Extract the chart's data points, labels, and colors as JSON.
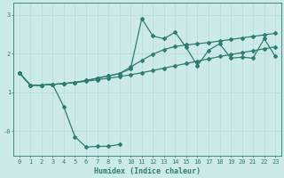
{
  "xlabel": "Humidex (Indice chaleur)",
  "ylabel": "",
  "bg_color": "#cceae8",
  "line_color": "#2e7d72",
  "grid_color": "#b8d8d6",
  "xlim": [
    -0.5,
    23.5
  ],
  "ylim": [
    -0.65,
    3.3
  ],
  "xticks": [
    0,
    1,
    2,
    3,
    4,
    5,
    6,
    7,
    8,
    9,
    10,
    11,
    12,
    13,
    14,
    15,
    16,
    17,
    18,
    19,
    20,
    21,
    22,
    23
  ],
  "yticks": [
    0.0,
    1.0,
    2.0,
    3.0
  ],
  "ytick_labels": [
    "-0",
    "1",
    "2",
    "3"
  ],
  "line1_x": [
    0,
    1,
    2,
    3,
    4,
    5,
    6,
    7,
    8,
    9,
    10,
    11,
    12,
    13,
    14,
    15,
    16,
    17,
    18,
    19,
    20,
    21,
    22,
    23
  ],
  "line1_y": [
    1.5,
    1.18,
    1.18,
    1.2,
    1.22,
    1.25,
    1.28,
    1.32,
    1.36,
    1.4,
    1.45,
    1.5,
    1.56,
    1.62,
    1.68,
    1.74,
    1.8,
    1.86,
    1.92,
    1.97,
    2.02,
    2.07,
    2.12,
    2.17
  ],
  "line2_x": [
    0,
    1,
    2,
    3,
    4,
    5,
    6,
    7,
    8,
    9,
    10,
    11,
    12,
    13,
    14,
    15,
    16,
    17,
    18,
    19,
    20,
    21,
    22,
    23
  ],
  "line2_y": [
    1.5,
    1.18,
    1.18,
    1.2,
    1.22,
    1.25,
    1.3,
    1.36,
    1.42,
    1.48,
    1.65,
    1.82,
    1.98,
    2.1,
    2.18,
    2.22,
    2.25,
    2.28,
    2.32,
    2.36,
    2.4,
    2.44,
    2.48,
    2.52
  ],
  "line3_x": [
    0,
    1,
    2,
    3,
    4,
    5,
    6,
    7,
    8,
    9,
    10,
    11,
    12,
    13,
    14,
    15,
    16,
    17,
    18,
    19,
    20,
    21,
    22,
    23
  ],
  "line3_y": [
    1.5,
    1.18,
    1.18,
    1.2,
    1.22,
    1.25,
    1.3,
    1.36,
    1.42,
    1.48,
    1.6,
    2.9,
    2.45,
    2.38,
    2.55,
    2.15,
    1.68,
    2.08,
    2.25,
    1.88,
    1.9,
    1.88,
    2.38,
    1.92
  ],
  "line4_x": [
    0,
    1,
    2,
    3,
    4,
    5,
    6,
    7,
    8,
    9
  ],
  "line4_y": [
    1.5,
    1.18,
    1.18,
    1.2,
    0.62,
    -0.15,
    -0.42,
    -0.4,
    -0.4,
    -0.35
  ]
}
